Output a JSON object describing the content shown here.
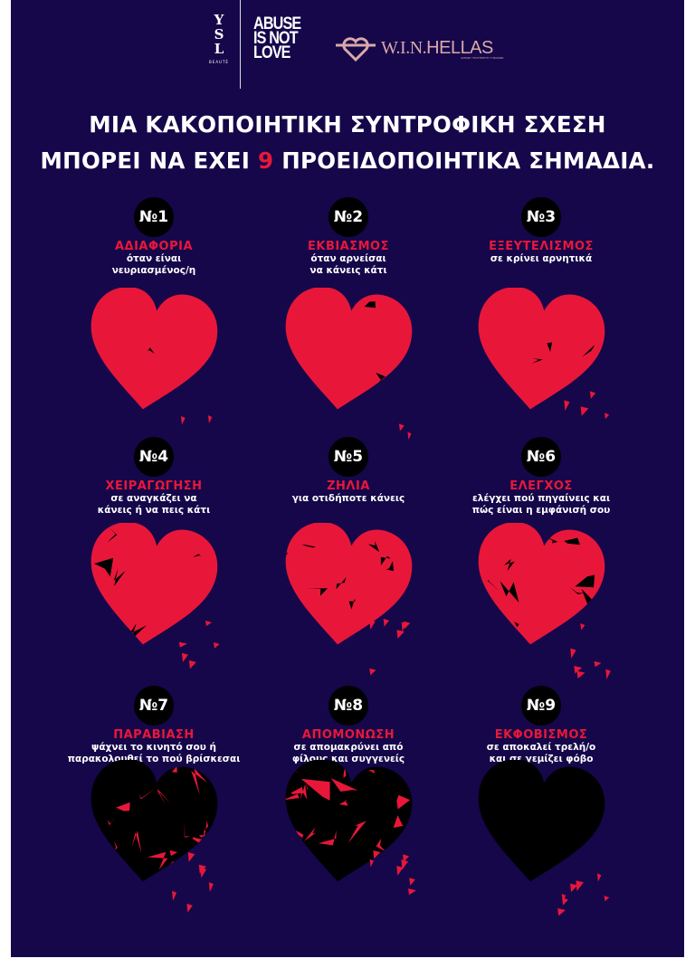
{
  "logos": {
    "ysl_monogram": "YSL",
    "ysl_sub": "BEAUTÉ",
    "campaign": [
      "ABUSE",
      "IS NOT",
      "LOVE"
    ],
    "partner_initials": "W.I.N.",
    "partner_name": "HELLAS",
    "partner_sub": "ΑΣΠΙΔΕ ΥΠΟΣΤΗΡΙΞΗ ΓΥΝΑΙΚΩΝ"
  },
  "headline": {
    "line1": "ΜΙΑ ΚΑΚΟΠΟΙΗΤΙΚΗ ΣΥΝΤΡΟΦΙΚΗ ΣΧΕΣΗ",
    "line2_before": "ΜΠΟΡΕΙ ΝΑ ΕΧΕΙ ",
    "line2_number": "9",
    "line2_after": " ΠΡΟΕΙΔΟΠΟΙΗΤΙΚΑ ΣΗΜΑΔΙΑ."
  },
  "colors": {
    "background": "#15074a",
    "accent": "#e8173a",
    "partner": "#d9a9a9"
  },
  "signs": [
    {
      "number": "№1",
      "title": "ΑΔΙΑΦΟΡΙΑ",
      "description": "όταν είναι\nνευριασμένος/η"
    },
    {
      "number": "№2",
      "title": "ΕΚΒΙΑΣΜΟΣ",
      "description": "όταν αρνείσαι\nνα κάνεις κάτι"
    },
    {
      "number": "№3",
      "title": "ΕΞΕΥΤΕΛΙΣΜΟΣ",
      "description": "σε κρίνει αρνητικά"
    },
    {
      "number": "№4",
      "title": "ΧΕΙΡΑΓΩΓΗΣΗ",
      "description": "σε αναγκάζει να\nκάνεις ή να πεις κάτι"
    },
    {
      "number": "№5",
      "title": "ΖΗΛΙΑ",
      "description": "για οτιδήποτε κάνεις"
    },
    {
      "number": "№6",
      "title": "ΕΛΕΓΧΟΣ",
      "description": "ελέγχει πού πηγαίνεις και\nπώς είναι η εμφάνισή σου"
    },
    {
      "number": "№7",
      "title": "ΠΑΡΑΒΙΑΣΗ",
      "description": "ψάχνει το κινητό σου ή\nπαρακολουθεί το πού βρίσκεσαι"
    },
    {
      "number": "№8",
      "title": "ΑΠΟΜΟΝΩΣΗ",
      "description": "σε απομακρύνει από\nφίλους και συγγενείς"
    },
    {
      "number": "№9",
      "title": "ΕΚΦΟΒΙΣΜΟΣ",
      "description": "σε αποκαλεί τρελή/ο\nκαι σε γεμίζει φόβο"
    }
  ]
}
